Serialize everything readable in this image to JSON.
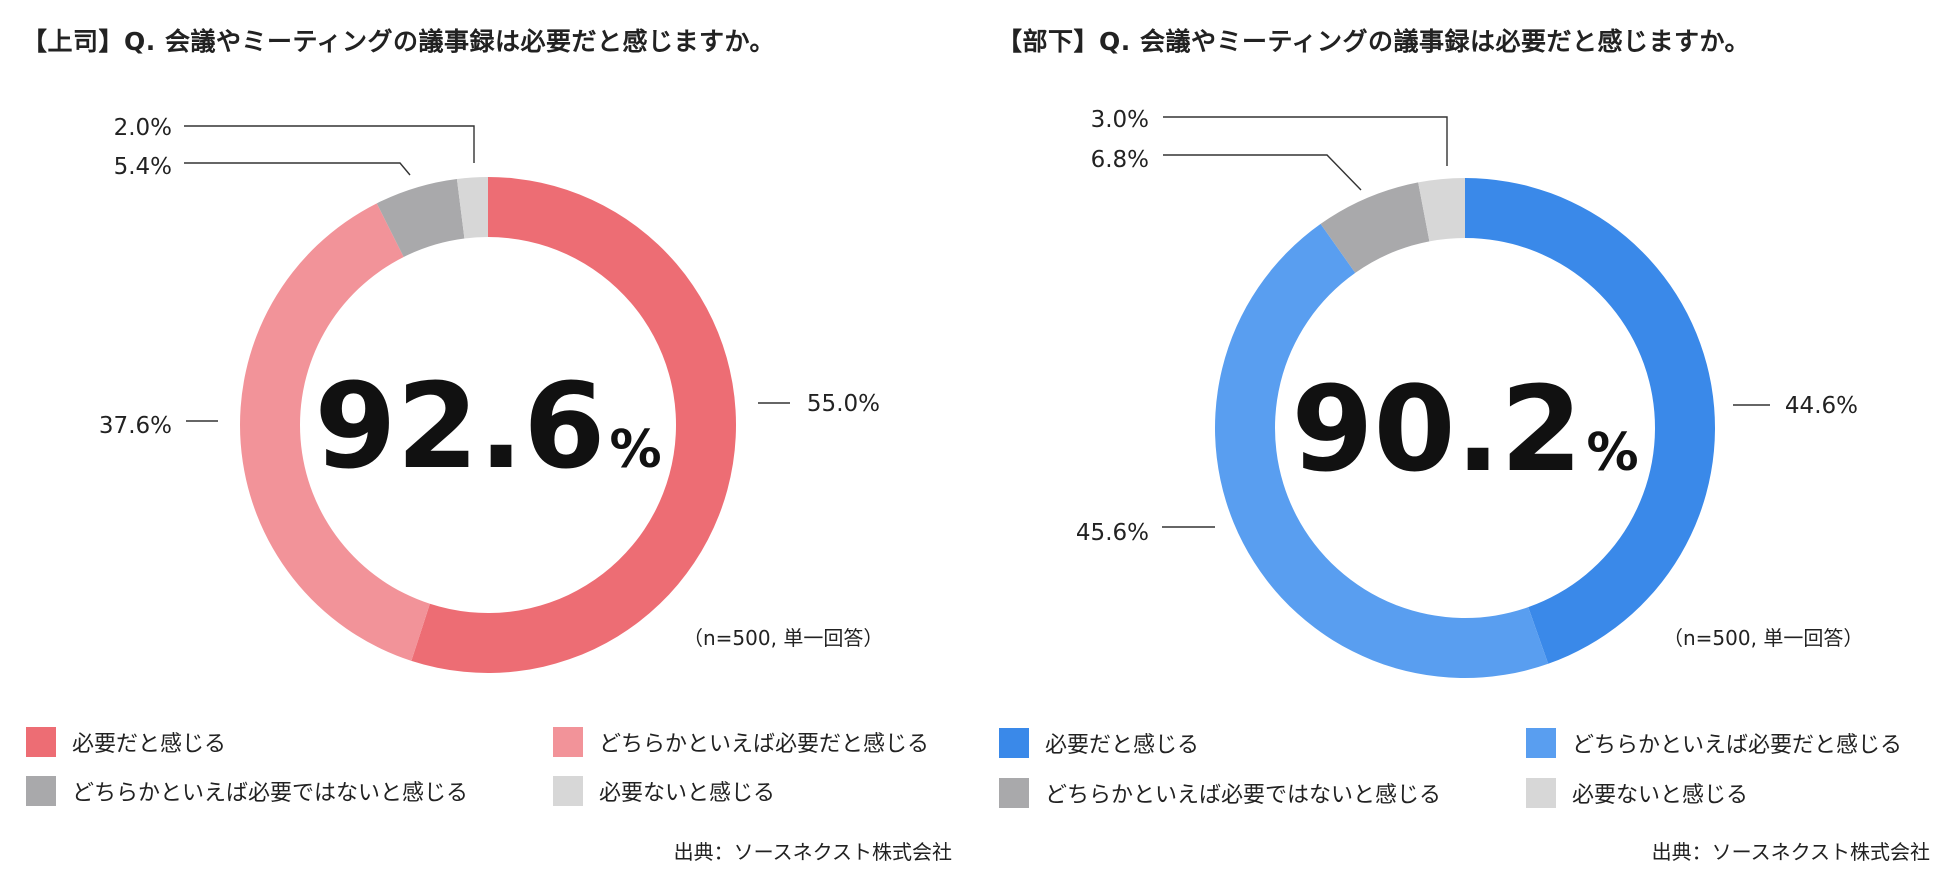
{
  "chart_data": [
    {
      "type": "donut",
      "title": "【上司】Q. 会議やミーティングの議事録は必要だと感じますか。",
      "center_label": {
        "value": "92.6",
        "unit": "%"
      },
      "categories": [
        "必要だと感じる",
        "どちらかといえば必要だと感じる",
        "どちらかといえば必要ではないと感じる",
        "必要ないと感じる"
      ],
      "values": [
        55.0,
        37.6,
        5.4,
        2.0
      ],
      "labels": [
        "55.0%",
        "37.6%",
        "5.4%",
        "2.0%"
      ],
      "colors": [
        "#ed6d74",
        "#f29399",
        "#a9a9ab",
        "#d7d7d7"
      ],
      "note": "（n=500, 単一回答）",
      "source": "出典：ソースネクスト株式会社",
      "legend_placement": "bottom"
    },
    {
      "type": "donut",
      "title": "【部下】Q. 会議やミーティングの議事録は必要だと感じますか。",
      "center_label": {
        "value": "90.2",
        "unit": "%"
      },
      "categories": [
        "必要だと感じる",
        "どちらかといえば必要だと感じる",
        "どちらかといえば必要ではないと感じる",
        "必要ないと感じる"
      ],
      "values": [
        44.6,
        45.6,
        6.8,
        3.0
      ],
      "labels": [
        "44.6%",
        "45.6%",
        "6.8%",
        "3.0%"
      ],
      "colors": [
        "#3a89e9",
        "#599ef0",
        "#a9a9ab",
        "#d7d7d7"
      ],
      "note": "（n=500, 単一回答）",
      "source": "出典：ソースネクスト株式会社",
      "legend_placement": "bottom"
    }
  ]
}
